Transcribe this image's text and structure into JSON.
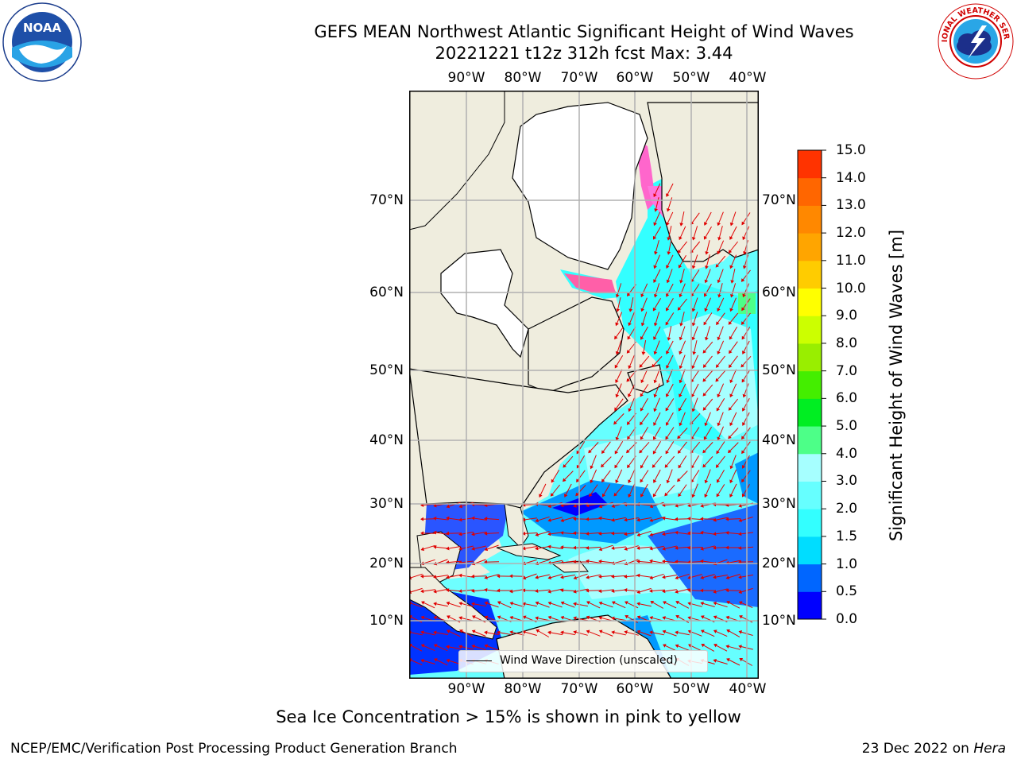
{
  "header": {
    "title_line1": "GEFS MEAN Northwest Atlantic Significant Height of Wind Waves",
    "title_line2": "20221221 t12z 312h fcst   Max: 3.44"
  },
  "map": {
    "lon_labels": [
      "90°W",
      "80°W",
      "70°W",
      "60°W",
      "50°W",
      "40°W"
    ],
    "lat_labels": [
      "70°N",
      "60°N",
      "50°N",
      "40°N",
      "30°N",
      "20°N",
      "10°N"
    ],
    "legend_text": "Wind Wave Direction (unscaled)",
    "colors": {
      "land": "#efedde",
      "ice_free_land": "#ffffff",
      "arrow": "#e00000",
      "grid": "#b0b0b0"
    }
  },
  "colorbar": {
    "label": "Significant Height of Wind Waves [m]",
    "ticks": [
      "0.0",
      "0.5",
      "1.0",
      "1.5",
      "2.0",
      "3.0",
      "4.0",
      "5.0",
      "6.0",
      "7.0",
      "8.0",
      "9.0",
      "10.0",
      "11.0",
      "12.0",
      "13.0",
      "14.0",
      "15.0"
    ],
    "colors": [
      "#0000ff",
      "#0066ff",
      "#00ddff",
      "#33ffff",
      "#66ffff",
      "#a6ffff",
      "#4dff88",
      "#00ee22",
      "#44ee00",
      "#99ee00",
      "#ccff00",
      "#ffff00",
      "#ffcc00",
      "#ffa500",
      "#ff8800",
      "#ff6600",
      "#ff3300",
      "#ff0000"
    ]
  },
  "footer": {
    "note": "Sea Ice Concentration > 15% is shown in pink to yellow",
    "credit_left": "NCEP/EMC/Verification Post Processing Product Generation Branch",
    "credit_right_prefix": "23 Dec 2022 on ",
    "credit_right_host": "Hera"
  },
  "logos": {
    "left_text": "NOAA",
    "right_text": "NATIONAL WEATHER SERVICE"
  }
}
